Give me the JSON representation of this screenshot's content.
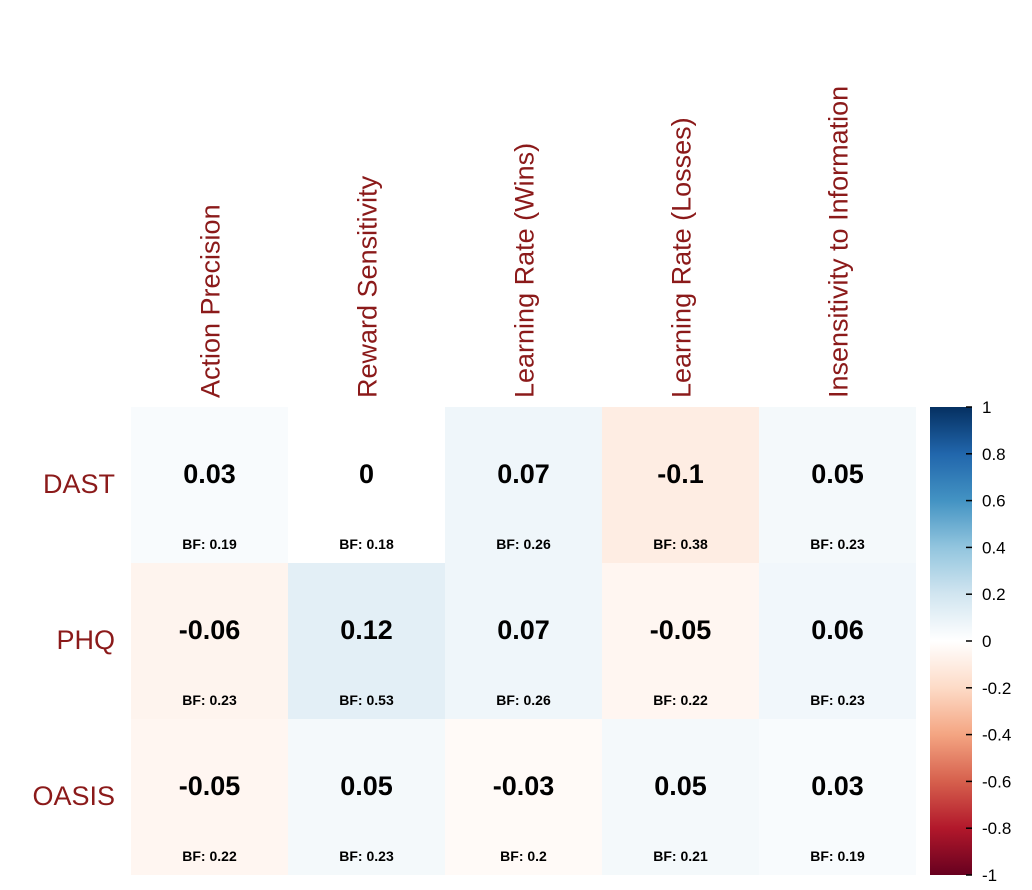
{
  "chart_data": {
    "type": "heatmap",
    "columns": [
      "Action Precision",
      "Reward Sensitivity",
      "Learning Rate (Wins)",
      "Learning Rate (Losses)",
      "Insensitivity to Information"
    ],
    "rows": [
      "DAST",
      "PHQ",
      "OASIS"
    ],
    "values": [
      [
        0.03,
        0,
        0.07,
        -0.1,
        0.05
      ],
      [
        -0.06,
        0.12,
        0.07,
        -0.05,
        0.06
      ],
      [
        -0.05,
        0.05,
        -0.03,
        0.05,
        0.03
      ]
    ],
    "value_labels": [
      [
        "0.03",
        "0",
        "0.07",
        "-0.1",
        "0.05"
      ],
      [
        "-0.06",
        "0.12",
        "0.07",
        "-0.05",
        "0.06"
      ],
      [
        "-0.05",
        "0.05",
        "-0.03",
        "0.05",
        "0.03"
      ]
    ],
    "bf_labels": [
      [
        "BF: 0.19",
        "BF: 0.18",
        "BF: 0.26",
        "BF: 0.38",
        "BF: 0.23"
      ],
      [
        "BF: 0.23",
        "BF: 0.53",
        "BF: 0.26",
        "BF: 0.22",
        "BF: 0.23"
      ],
      [
        "BF: 0.22",
        "BF: 0.23",
        "BF: 0.2",
        "BF: 0.21",
        "BF: 0.19"
      ]
    ],
    "color_scale": {
      "range": [
        -1,
        1
      ],
      "stops": [
        "#67001f",
        "#b2182b",
        "#d6604d",
        "#f4a582",
        "#fddbc7",
        "#ffffff",
        "#d1e5f0",
        "#92c5de",
        "#4393c3",
        "#2166ac",
        "#053061"
      ],
      "ticks": [
        "1",
        "0.8",
        "0.6",
        "0.4",
        "0.2",
        "0",
        "-0.2",
        "-0.4",
        "-0.6",
        "-0.8",
        "-1"
      ]
    },
    "legend_placement": "right"
  }
}
